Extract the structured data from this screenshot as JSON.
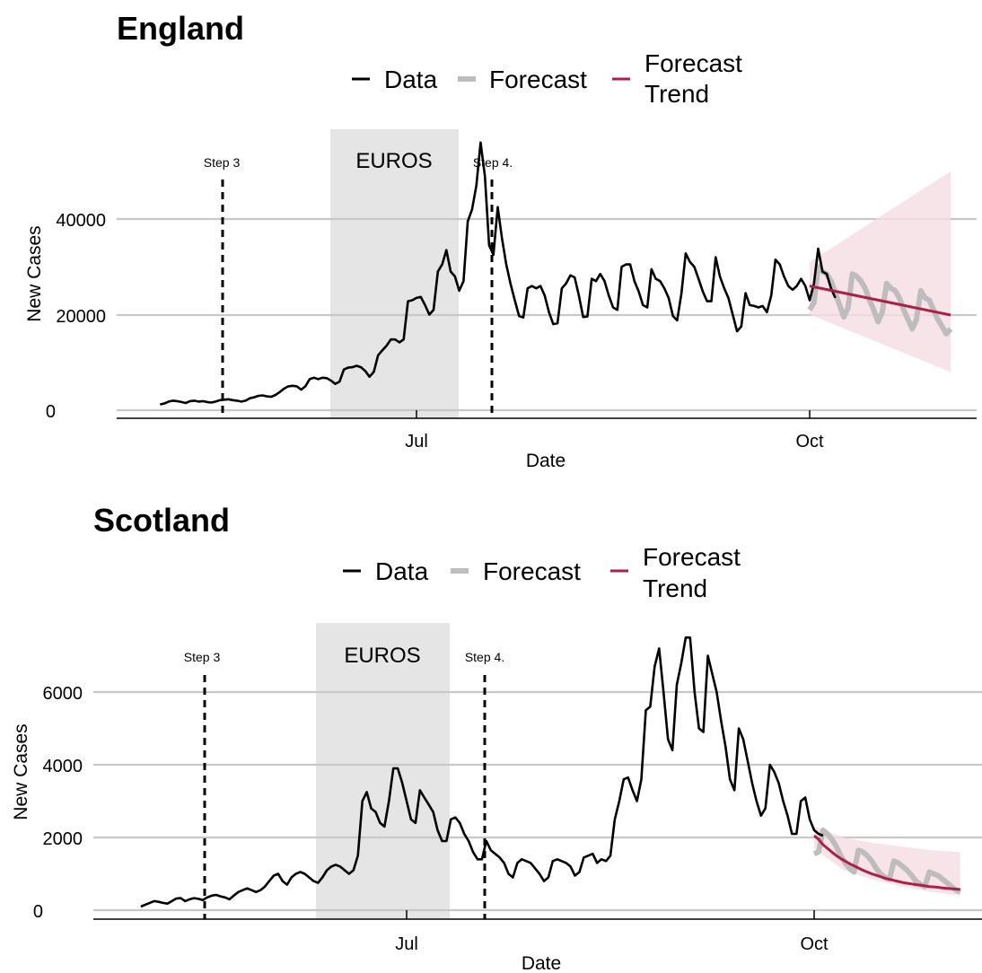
{
  "legend": {
    "data": "Data",
    "forecast": "Forecast",
    "trend_line1": "Forecast",
    "trend_line2": "Trend"
  },
  "colors": {
    "data": "#000000",
    "forecast": "#bdbdbd",
    "trend": "#b01e48",
    "band": "#f5dde3",
    "shade": "#e5e5e5",
    "grid": "#c8c8c8"
  },
  "chart_data": [
    {
      "type": "line",
      "title": "England",
      "xlabel": "Date",
      "ylabel": "New Cases",
      "x_ticks": [
        {
          "label": "Jul",
          "date": "2021-07-01"
        },
        {
          "label": "Oct",
          "date": "2021-10-01"
        }
      ],
      "y_ticks": [
        0,
        20000,
        40000
      ],
      "ylim": [
        0,
        58000
      ],
      "xlim": [
        "2020-05-02",
        "2021-11-09"
      ],
      "shaded_region": {
        "label": "EUROS",
        "start": "2021-06-11",
        "end": "2021-07-11"
      },
      "events": [
        {
          "label": "Step 3",
          "date": "2021-05-17"
        },
        {
          "label": "Step 4.",
          "date": "2021-07-19"
        }
      ],
      "series": [
        {
          "name": "Data",
          "start": "2021-05-02",
          "values": [
            1200,
            1400,
            1800,
            2000,
            1900,
            1700,
            1500,
            1900,
            2000,
            1800,
            1900,
            1700,
            1600,
            1800,
            2100,
            2200,
            2300,
            2100,
            2000,
            1800,
            2000,
            2500,
            2700,
            3000,
            3100,
            2900,
            2800,
            3200,
            3800,
            4500,
            5000,
            5100,
            5000,
            4300,
            5000,
            6500,
            6800,
            6500,
            6800,
            6700,
            6200,
            5500,
            6000,
            8500,
            8900,
            9000,
            9300,
            9000,
            8200,
            7000,
            8000,
            11500,
            12500,
            13500,
            14800,
            14800,
            14200,
            14800,
            22800,
            23000,
            23500,
            23700,
            22000,
            20000,
            21000,
            29000,
            30500,
            33500,
            29000,
            28000,
            25000,
            27000,
            39500,
            42000,
            47000,
            56000,
            49000,
            34500,
            32500,
            42500,
            36000,
            30500,
            26500,
            23000,
            19700,
            19400,
            25500,
            26000,
            25500,
            26000,
            24000,
            20500,
            18000,
            18200,
            25500,
            26500,
            28200,
            27800,
            24000,
            19500,
            19600,
            27500,
            27000,
            28500,
            27000,
            24000,
            21500,
            21000,
            30000,
            30500,
            30500,
            27000,
            24800,
            22000,
            21500,
            29500,
            27500,
            27000,
            25500,
            23500,
            19700,
            18800,
            24500,
            32800,
            31000,
            30000,
            27500,
            24800,
            22800,
            22800,
            32000,
            28000,
            25500,
            23500,
            20000,
            16500,
            17500,
            24500,
            22000,
            21800,
            21500,
            21800,
            20500,
            24000,
            31500,
            30500,
            28000,
            26000,
            25200,
            26000,
            27500,
            26000,
            23000,
            26500,
            33800,
            29000,
            28500,
            25500,
            23500
          ]
        },
        {
          "name": "Forecast",
          "start": "2021-10-01",
          "values": [
            21000,
            22500,
            30000,
            29000,
            28500,
            27000,
            24500,
            22000,
            19500,
            21500,
            28500,
            28000,
            27000,
            25500,
            23000,
            21000,
            18500,
            20500,
            26500,
            25500,
            25000,
            23500,
            21000,
            19000,
            17000,
            19000,
            25000,
            23500,
            23000,
            21000,
            19000,
            17500,
            16000,
            17000
          ]
        },
        {
          "name": "Forecast Trend",
          "start": "2021-10-01",
          "values": [
            26000,
            19900
          ]
        },
        {
          "name": "Forecast interval",
          "start": "2021-10-01",
          "lower": [
            20000,
            8000
          ],
          "upper": [
            31000,
            50000
          ]
        }
      ]
    },
    {
      "type": "line",
      "title": "Scotland",
      "xlabel": "Date",
      "ylabel": "New Cases",
      "x_ticks": [
        {
          "label": "Jul",
          "date": "2021-07-01"
        },
        {
          "label": "Oct",
          "date": "2021-10-01"
        }
      ],
      "y_ticks": [
        0,
        2000,
        4000,
        6000
      ],
      "ylim": [
        0,
        7800
      ],
      "xlim": [
        "2021-04-24",
        "2021-11-10"
      ],
      "shaded_region": {
        "label": "EUROS",
        "start": "2021-06-11",
        "end": "2021-07-11"
      },
      "events": [
        {
          "label": "Step 3",
          "date": "2021-05-17"
        },
        {
          "label": "Step 4.",
          "date": "2021-07-19"
        }
      ],
      "series": [
        {
          "name": "Data",
          "start": "2021-05-02",
          "values": [
            100,
            150,
            200,
            250,
            230,
            200,
            180,
            250,
            320,
            330,
            250,
            300,
            330,
            310,
            280,
            350,
            400,
            420,
            380,
            350,
            300,
            400,
            500,
            550,
            600,
            550,
            500,
            550,
            650,
            800,
            950,
            1000,
            800,
            700,
            900,
            1000,
            1050,
            1000,
            900,
            800,
            750,
            900,
            1100,
            1200,
            1250,
            1200,
            1100,
            1000,
            1100,
            1500,
            3000,
            3250,
            2800,
            2700,
            2400,
            2300,
            3000,
            3900,
            3900,
            3500,
            3000,
            2500,
            2400,
            3300,
            3100,
            2900,
            2700,
            2200,
            1900,
            1900,
            2500,
            2550,
            2400,
            2100,
            1900,
            1600,
            1400,
            1400,
            1900,
            1650,
            1550,
            1450,
            1300,
            1000,
            900,
            1300,
            1400,
            1350,
            1300,
            1150,
            1000,
            800,
            900,
            1350,
            1400,
            1350,
            1300,
            1200,
            950,
            1050,
            1450,
            1500,
            1550,
            1300,
            1400,
            1350,
            1500,
            2500,
            3000,
            3600,
            3650,
            3300,
            3000,
            3600,
            5500,
            5600,
            6700,
            7200,
            6000,
            4700,
            4400,
            6200,
            6800,
            7500,
            7500,
            6000,
            5000,
            4900,
            7000,
            6500,
            6000,
            5200,
            4500,
            3600,
            3300,
            5000,
            4700,
            4100,
            3500,
            3000,
            2600,
            2800,
            4000,
            3800,
            3500,
            3000,
            2600,
            2100,
            2100,
            3000,
            3100,
            2500,
            2200,
            2100,
            2050
          ]
        },
        {
          "name": "Forecast",
          "start": "2021-10-01",
          "values": [
            1550,
            1600,
            2200,
            2100,
            1950,
            1750,
            1500,
            1300,
            1150,
            1050,
            1650,
            1600,
            1500,
            1350,
            1150,
            1000,
            900,
            850,
            1350,
            1300,
            1200,
            1100,
            950,
            800,
            700,
            650,
            1050,
            1000,
            950,
            850,
            750,
            650,
            550,
            500
          ]
        },
        {
          "name": "Forecast Trend",
          "start": "2021-10-01",
          "values": [
            2050,
            1950,
            1800,
            1700,
            1600,
            1500,
            1420,
            1350,
            1280,
            1220,
            1160,
            1100,
            1050,
            1000,
            960,
            920,
            880,
            850,
            820,
            790,
            760,
            740,
            720,
            700,
            690,
            670,
            650,
            640,
            630,
            610,
            600,
            590,
            580,
            570
          ]
        },
        {
          "name": "Forecast interval",
          "start": "2021-10-01",
          "lower": [
            1700,
            1100,
            850,
            650,
            500,
            400
          ],
          "upper": [
            2300,
            2000,
            1850,
            1750,
            1650,
            1600
          ]
        }
      ]
    }
  ]
}
